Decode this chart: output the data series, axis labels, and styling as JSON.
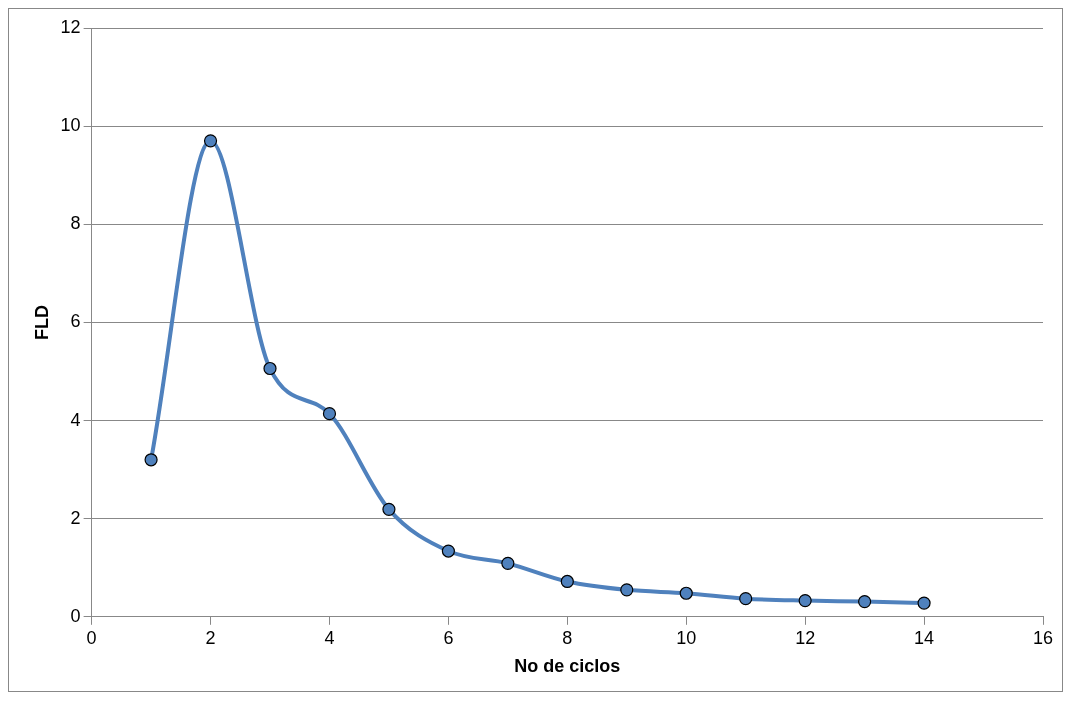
{
  "chart_data": {
    "type": "line",
    "xlabel": "No de ciclos",
    "ylabel": "FLD",
    "x": [
      1,
      2,
      3,
      4,
      5,
      6,
      7,
      8,
      9,
      10,
      11,
      12,
      13,
      14
    ],
    "series": [
      {
        "color": "#4f81bd",
        "values": [
          3.2,
          9.7,
          5.06,
          4.14,
          2.19,
          1.34,
          1.09,
          0.72,
          0.55,
          0.48,
          0.37,
          0.33,
          0.31,
          0.28
        ]
      }
    ],
    "xlim": [
      0,
      16
    ],
    "xticks": [
      0,
      2,
      4,
      6,
      8,
      10,
      12,
      14,
      16
    ],
    "ylim": [
      0,
      12
    ],
    "yticks": [
      0,
      2,
      4,
      6,
      8,
      10,
      12
    ],
    "grid": "y",
    "marker": "circle",
    "line_style": "solid",
    "legend": false
  }
}
